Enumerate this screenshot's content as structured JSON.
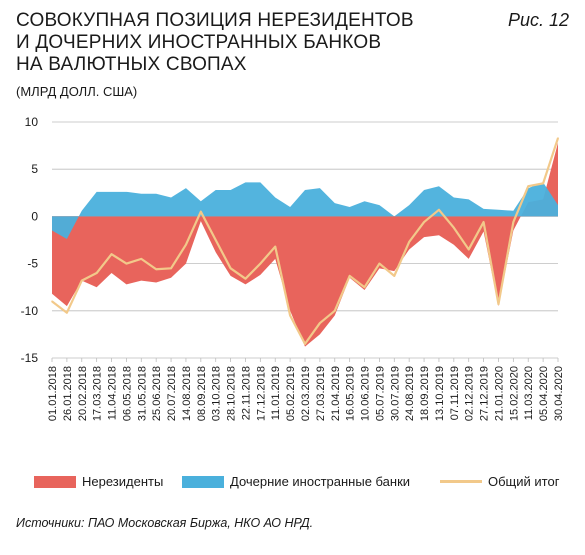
{
  "figure": {
    "title_lines": [
      "СОВОКУПНАЯ ПОЗИЦИЯ НЕРЕЗИДЕНТОВ",
      "И ДОЧЕРНИХ ИНОСТРАННЫХ БАНКОВ",
      "НА ВАЛЮТНЫХ СВОПАХ"
    ],
    "subtitle": "(МЛРД ДОЛЛ. США)",
    "label": "Рис. 12",
    "source": "Источники: ПАО Московская Биржа, НКО АО НРД."
  },
  "colors": {
    "nonresidents": "#e8645c",
    "subsidiaries": "#4ab0dc",
    "total": "#f2c98a",
    "grid": "#bdbdbd",
    "axis_text": "#1a1a1a"
  },
  "chart_data": {
    "type": "area",
    "title": "СОВОКУПНАЯ ПОЗИЦИЯ НЕРЕЗИДЕНТОВ И ДОЧЕРНИХ ИНОСТРАННЫХ БАНКОВ НА ВАЛЮТНЫХ СВОПАХ",
    "ylabel": "(МЛРД ДОЛЛ. США)",
    "xlabel": "",
    "ylim": [
      -15,
      10
    ],
    "yticks": [
      -15,
      -10,
      -5,
      0,
      5,
      10
    ],
    "grid": "horizontal",
    "legend_position": "bottom",
    "x_tick_labels": [
      "01.01.2018",
      "26.01.2018",
      "20.02.2018",
      "17.03.2018",
      "11.04.2018",
      "06.05.2018",
      "31.05.2018",
      "25.06.2018",
      "20.07.2018",
      "14.08.2018",
      "08.09.2018",
      "03.10.2018",
      "28.10.2018",
      "22.11.2018",
      "17.12.2018",
      "11.01.2019",
      "05.02.2019",
      "02.03.2019",
      "27.03.2019",
      "21.04.2019",
      "16.05.2019",
      "10.06.2019",
      "05.07.2019",
      "30.07.2019",
      "24.08.2019",
      "18.09.2019",
      "13.10.2019",
      "07.11.2019",
      "02.12.2019",
      "27.12.2019",
      "21.01.2020",
      "15.02.2020",
      "11.03.2020",
      "05.04.2020",
      "30.04.2020"
    ],
    "series": [
      {
        "name": "Нерезиденты",
        "values": [
          -8.2,
          -9.5,
          -6.8,
          -7.5,
          -6.0,
          -7.2,
          -6.8,
          -7.0,
          -6.5,
          -5.0,
          -0.5,
          -3.8,
          -6.3,
          -7.2,
          -6.2,
          -4.5,
          -10.0,
          -13.8,
          -12.5,
          -10.5,
          -6.5,
          -7.8,
          -5.5,
          -5.8,
          -3.5,
          -2.2,
          -2.0,
          -3.0,
          -4.5,
          -1.6,
          -9.5,
          -1.5,
          1.5,
          1.8,
          7.8
        ]
      },
      {
        "name": "Дочерние иностранные банки",
        "values": [
          -1.5,
          -2.4,
          0.6,
          2.6,
          2.6,
          2.6,
          2.4,
          2.4,
          2.0,
          3.0,
          1.6,
          2.8,
          2.8,
          3.6,
          3.6,
          2.0,
          1.0,
          2.8,
          3.0,
          1.4,
          1.0,
          1.6,
          1.2,
          0.0,
          1.2,
          2.8,
          3.2,
          2.0,
          1.8,
          0.8,
          0.7,
          0.6,
          3.0,
          3.6,
          1.2
        ]
      },
      {
        "name": "Общий итог",
        "values": [
          -9.0,
          -10.2,
          -6.8,
          -6.0,
          -4.0,
          -5.0,
          -4.5,
          -5.6,
          -5.5,
          -3.0,
          0.5,
          -2.5,
          -5.5,
          -6.6,
          -5.0,
          -3.2,
          -10.5,
          -13.5,
          -11.3,
          -10.0,
          -6.3,
          -7.5,
          -5.0,
          -6.3,
          -2.7,
          -0.6,
          0.7,
          -1.2,
          -3.5,
          -0.6,
          -9.3,
          -0.6,
          3.2,
          3.5,
          8.3
        ]
      }
    ]
  }
}
